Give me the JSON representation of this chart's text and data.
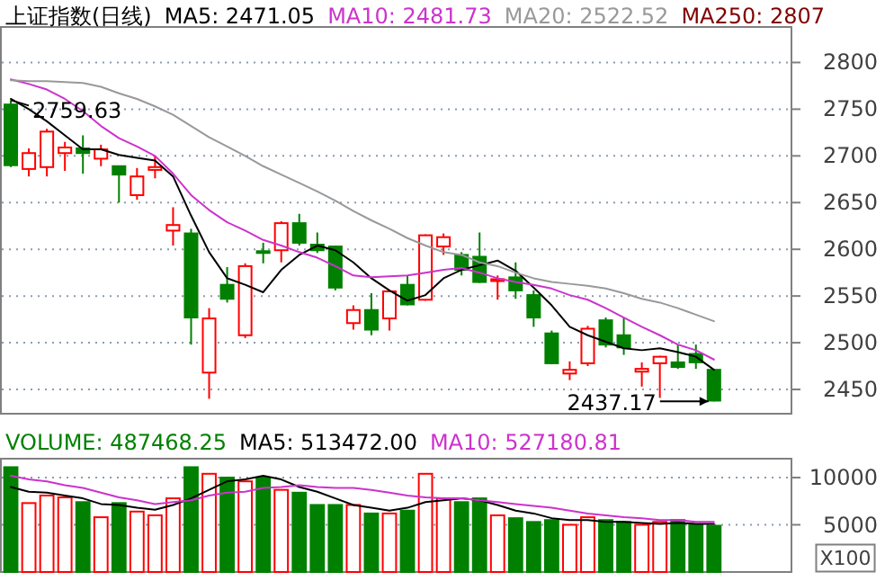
{
  "chart_data": [
    {
      "type": "candlestick",
      "title": "上证指数(日线)",
      "categories": [
        null,
        null,
        null,
        null,
        null,
        null,
        null,
        null,
        null,
        null,
        null,
        null,
        null,
        null,
        null,
        null,
        null,
        null,
        null,
        null,
        null,
        null,
        null,
        null,
        null,
        null,
        null,
        null,
        null,
        null,
        null,
        null,
        null,
        null,
        null,
        null,
        null,
        null,
        null,
        null
      ],
      "ohlc": [
        [
          2755,
          2759.63,
          2688,
          2690
        ],
        [
          2686,
          2708,
          2678,
          2703
        ],
        [
          2688,
          2729,
          2678,
          2726
        ],
        [
          2703,
          2715,
          2684,
          2709
        ],
        [
          2708,
          2722,
          2681,
          2703
        ],
        [
          2697,
          2712,
          2689,
          2707
        ],
        [
          2689,
          2689,
          2650,
          2680
        ],
        [
          2658,
          2687,
          2653,
          2678
        ],
        [
          2685,
          2700,
          2676,
          2688
        ],
        [
          2620,
          2645,
          2604,
          2626
        ],
        [
          2617,
          2622,
          2498,
          2527
        ],
        [
          2468,
          2537,
          2440,
          2526
        ],
        [
          2562,
          2581,
          2543,
          2547
        ],
        [
          2508,
          2585,
          2505,
          2582
        ],
        [
          2598,
          2607,
          2585,
          2597
        ],
        [
          2599,
          2630,
          2586,
          2628
        ],
        [
          2628,
          2638,
          2604,
          2607
        ],
        [
          2605,
          2618,
          2596,
          2599
        ],
        [
          2603,
          2604,
          2556,
          2559
        ],
        [
          2521,
          2540,
          2514,
          2535
        ],
        [
          2535,
          2553,
          2508,
          2514
        ],
        [
          2526,
          2556,
          2513,
          2555
        ],
        [
          2562,
          2572,
          2540,
          2541
        ],
        [
          2546,
          2616,
          2545,
          2615
        ],
        [
          2603,
          2617,
          2594,
          2613
        ],
        [
          2594,
          2597,
          2572,
          2578
        ],
        [
          2592,
          2618,
          2564,
          2565
        ],
        [
          2566,
          2572,
          2546,
          2568
        ],
        [
          2570,
          2586,
          2547,
          2556
        ],
        [
          2551,
          2556,
          2517,
          2527
        ],
        [
          2510,
          2513,
          2477,
          2478
        ],
        [
          2467,
          2480,
          2460,
          2471
        ],
        [
          2478,
          2518,
          2475,
          2515
        ],
        [
          2524,
          2527,
          2495,
          2498
        ],
        [
          2508,
          2527,
          2487,
          2495
        ],
        [
          2469,
          2479,
          2453,
          2472
        ],
        [
          2478,
          2486,
          2441,
          2485
        ],
        [
          2479,
          2498,
          2472,
          2474
        ],
        [
          2488,
          2498,
          2472,
          2479
        ],
        [
          2471,
          2472,
          2437.17,
          2438
        ]
      ],
      "colors": [
        "#008000",
        "#ff0000",
        "#ff0000",
        "#ff0000",
        "#008000",
        "#ff0000",
        "#008000",
        "#ff0000",
        "#ff0000",
        "#ff0000",
        "#008000",
        "#ff0000",
        "#008000",
        "#ff0000",
        "#008000",
        "#ff0000",
        "#008000",
        "#008000",
        "#008000",
        "#ff0000",
        "#008000",
        "#ff0000",
        "#008000",
        "#ff0000",
        "#ff0000",
        "#008000",
        "#008000",
        "#ff0000",
        "#008000",
        "#008000",
        "#008000",
        "#ff0000",
        "#ff0000",
        "#008000",
        "#008000",
        "#ff0000",
        "#ff0000",
        "#008000",
        "#008000",
        "#008000"
      ],
      "series": [
        {
          "type": "line",
          "name": "MA5: 2471.05",
          "color": "#000000",
          "values": [
            2761,
            2750,
            2737,
            2722,
            2707,
            2707,
            2701,
            2698,
            2695,
            2678,
            2636,
            2597,
            2569,
            2562,
            2554,
            2578,
            2594,
            2604,
            2599,
            2586,
            2569,
            2556,
            2545,
            2551,
            2569,
            2578,
            2583,
            2588,
            2577,
            2559,
            2540,
            2517,
            2508,
            2501,
            2494,
            2492,
            2494,
            2490,
            2485,
            2471
          ]
        },
        {
          "type": "line",
          "name": "MA10: 2481.73",
          "color": "#cc33cc",
          "values": [
            2782,
            2777,
            2771,
            2761,
            2748,
            2732,
            2719,
            2710,
            2700,
            2681,
            2658,
            2642,
            2629,
            2620,
            2610,
            2604,
            2597,
            2591,
            2582,
            2572,
            2570,
            2571,
            2572,
            2575,
            2578,
            2580,
            2575,
            2569,
            2565,
            2562,
            2558,
            2551,
            2546,
            2537,
            2527,
            2517,
            2508,
            2498,
            2492,
            2482
          ]
        },
        {
          "type": "line",
          "name": "MA20: 2522.52",
          "color": "#999999",
          "values": [
            2781,
            2780,
            2780,
            2779,
            2778,
            2774,
            2767,
            2761,
            2753,
            2744,
            2732,
            2720,
            2710,
            2700,
            2689,
            2680,
            2671,
            2662,
            2652,
            2641,
            2631,
            2622,
            2612,
            2604,
            2597,
            2594,
            2586,
            2582,
            2575,
            2569,
            2565,
            2563,
            2561,
            2558,
            2553,
            2547,
            2543,
            2537,
            2530,
            2523
          ]
        }
      ],
      "ylim": [
        2424,
        2838
      ],
      "yticks": [
        2450,
        2500,
        2550,
        2600,
        2650,
        2700,
        2750,
        2800
      ],
      "grid": "y",
      "legend": "top",
      "annotations": [
        "MA250: 2807",
        "2759.63",
        "2437.17"
      ]
    },
    {
      "type": "bar",
      "categories": [
        null,
        null,
        null,
        null,
        null,
        null,
        null,
        null,
        null,
        null,
        null,
        null,
        null,
        null,
        null,
        null,
        null,
        null,
        null,
        null,
        null,
        null,
        null,
        null,
        null,
        null,
        null,
        null,
        null,
        null,
        null,
        null,
        null,
        null,
        null,
        null,
        null,
        null,
        null,
        null
      ],
      "series": [
        {
          "type": "bar",
          "name": "VOLUME: 487468.25",
          "colors": [
            "#008000",
            "#ff0000",
            "#ff0000",
            "#ff0000",
            "#008000",
            "#ff0000",
            "#008000",
            "#ff0000",
            "#ff0000",
            "#ff0000",
            "#008000",
            "#ff0000",
            "#008000",
            "#ff0000",
            "#008000",
            "#ff0000",
            "#008000",
            "#008000",
            "#008000",
            "#ff0000",
            "#008000",
            "#ff0000",
            "#008000",
            "#ff0000",
            "#ff0000",
            "#008000",
            "#008000",
            "#ff0000",
            "#008000",
            "#008000",
            "#008000",
            "#ff0000",
            "#ff0000",
            "#008000",
            "#008000",
            "#ff0000",
            "#ff0000",
            "#008000",
            "#008000",
            "#008000"
          ],
          "values": [
            11100,
            7300,
            8100,
            7900,
            7400,
            5800,
            7300,
            6400,
            6000,
            7800,
            11100,
            10400,
            10000,
            9600,
            10000,
            8700,
            8400,
            7100,
            7100,
            7100,
            6200,
            6200,
            6500,
            10400,
            7800,
            7400,
            7800,
            6000,
            5700,
            5300,
            5500,
            5000,
            5800,
            5500,
            5300,
            5000,
            5300,
            5500,
            5000,
            4900
          ]
        },
        {
          "type": "line",
          "name": "MA5: 513472.00",
          "color": "#000000",
          "values": [
            9000,
            8500,
            8400,
            8100,
            7800,
            7200,
            7100,
            6800,
            6600,
            7100,
            7800,
            8700,
            9600,
            9800,
            10200,
            9800,
            9000,
            8500,
            7800,
            7100,
            6800,
            6500,
            6800,
            7400,
            7600,
            7800,
            7600,
            7100,
            6500,
            6200,
            5700,
            5500,
            5500,
            5300,
            5300,
            5200,
            5100,
            5200,
            5100,
            5100
          ]
        },
        {
          "type": "line",
          "name": "MA10: 527180.81",
          "color": "#cc33cc",
          "values": [
            10200,
            9800,
            9600,
            9200,
            8900,
            8400,
            7900,
            7600,
            7200,
            7400,
            7600,
            8100,
            8400,
            8500,
            8900,
            9000,
            9200,
            9000,
            8900,
            8900,
            8700,
            8400,
            8100,
            7900,
            7800,
            7800,
            7600,
            7400,
            7200,
            7000,
            6800,
            6500,
            6200,
            6000,
            5800,
            5700,
            5500,
            5500,
            5300,
            5300
          ]
        }
      ],
      "ylim": [
        0,
        12000
      ],
      "yticks": [
        5000,
        10000
      ],
      "grid": "y",
      "legend": "top left",
      "annotations": [
        "X100"
      ]
    }
  ]
}
